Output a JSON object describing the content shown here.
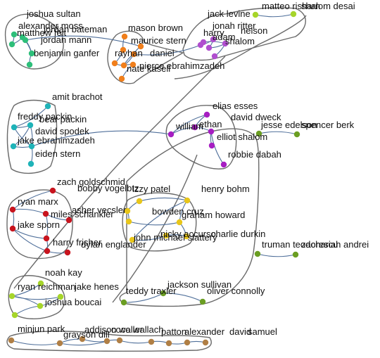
{
  "colors": {
    "teal_green": "#2ebf7a",
    "orange": "#f07f1c",
    "purple": "#b04fcf",
    "cyan": "#1fb3b8",
    "magenta": "#a61ec2",
    "red": "#c8141e",
    "yellow": "#e8c61a",
    "olive": "#6b9e22",
    "lime": "#a6d52a",
    "brown": "#b07f45",
    "edge": "#4f6f9a",
    "hull": "#6a6a6a"
  },
  "groups": [
    {
      "id": "g1",
      "color": "teal_green",
      "members": [
        "joshua sultan",
        "alexander moss",
        "jordan bateman",
        "matthew feit",
        "jordan mann",
        "benjamin ganfer"
      ]
    },
    {
      "id": "g2",
      "color": "orange",
      "members": [
        "mason brown",
        "maurice stern",
        "rayhan",
        "daniel",
        "nate kasell",
        "pierce ebrahimzadeh"
      ]
    },
    {
      "id": "g3",
      "color": "purple",
      "members": [
        "jack levine",
        "jonah ritter",
        "harry",
        "adam",
        "nelson",
        "shalom"
      ]
    },
    {
      "id": "g4",
      "color": "cyan",
      "members": [
        "amit brachot",
        "freddy packin",
        "bear packin",
        "david spodek",
        "jake ebrahimzadeh",
        "eiden stern"
      ]
    },
    {
      "id": "g5",
      "color": "magenta",
      "members": [
        "elias esses",
        "david dweck",
        "william",
        "ethan",
        "elliot shalom",
        "robbie dabah"
      ]
    },
    {
      "id": "g6",
      "color": "red",
      "members": [
        "zach goldschmid",
        "bobby vogelbtz",
        "ryan marx",
        "asher vecsler",
        "miles schankler",
        "jake sporn",
        "harry frisher",
        "dylan englander"
      ]
    },
    {
      "id": "g7",
      "color": "yellow",
      "members": [
        "izzy patel",
        "henry bohm",
        "bowden cruz",
        "graham howard",
        "nicky accurso",
        "charlie durkin",
        "john michael slattery",
        "dylan englander"
      ]
    },
    {
      "id": "g8",
      "color": "lime",
      "members": [
        "noah kay",
        "ryan reichman",
        "jake henes",
        "joshua boucai"
      ]
    },
    {
      "id": "g9",
      "color": "olive",
      "members": [
        "teddy traxler",
        "jackson sullivan",
        "oliver connolly",
        "truman teodorescu",
        "zachariah andrei"
      ]
    },
    {
      "id": "g10",
      "color": "brown",
      "members": [
        "minjun park",
        "grayson dill",
        "addison waller",
        "coco wallach",
        "patton",
        "alexander",
        "david",
        "samuel"
      ]
    }
  ],
  "labels": [
    "joshua sultan",
    "alexander moss",
    "jordan bateman",
    "matthew feit",
    "jordan mann",
    "benjamin ganfer",
    "mason brown",
    "maurice stern",
    "rayhan",
    "daniel",
    "nate kasell",
    "pierce ebrahimzadeh",
    "jack levine",
    "jonah ritter",
    "harry",
    "adam",
    "nelson",
    "shalom",
    "matteo risharn",
    "shalom desai",
    "amit brachot",
    "freddy packin",
    "bear packin",
    "david spodek",
    "jake ebrahimzadeh",
    "eiden stern",
    "elias esses",
    "david dweck",
    "william",
    "ethan",
    "elliot shalom",
    "robbie dabah",
    "jesse edelson",
    "spencer berk",
    "zach goldschmid",
    "bobby vogelbtz",
    "ryan marx",
    "asher vecsler",
    "miles schankler",
    "jake sporn",
    "harry frisher",
    "dylan englander",
    "izzy patel",
    "henry bohm",
    "bowden cruz",
    "graham howard",
    "nicky accurso",
    "charlie durkin",
    "john michael slattery",
    "truman teodorescu",
    "zachariah andrei",
    "noah kay",
    "ryan reichman",
    "jake henes",
    "joshua boucai",
    "teddy traxler",
    "jackson sullivan",
    "oliver connolly",
    "minjun park",
    "grayson dill",
    "addison waller",
    "coco wallach",
    "patton",
    "alexander",
    "david",
    "samuel"
  ]
}
